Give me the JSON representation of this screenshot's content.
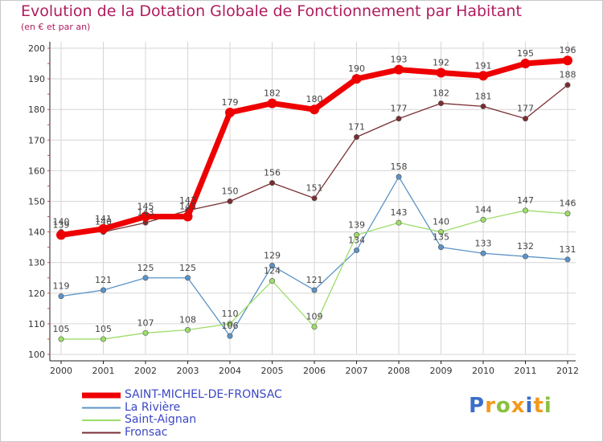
{
  "chart_data": {
    "type": "line",
    "title": "Evolution de la Dotation Globale de Fonctionnement par Habitant",
    "subtitle": "(en € et par an)",
    "xlabel": "",
    "ylabel": "",
    "ylim": [
      100,
      200
    ],
    "yticks": [
      100,
      110,
      120,
      130,
      140,
      150,
      160,
      170,
      180,
      190,
      200
    ],
    "grid": true,
    "legend_position": "bottom-left",
    "categories": [
      "2000",
      "2001",
      "2002",
      "2003",
      "2004",
      "2005",
      "2006",
      "2007",
      "2008",
      "2009",
      "2010",
      "2011",
      "2012"
    ],
    "series": [
      {
        "name": "La Rivière",
        "color": "#5b93c7",
        "values": [
          119,
          121,
          125,
          125,
          106,
          129,
          121,
          134,
          158,
          135,
          133,
          132,
          131
        ]
      },
      {
        "name": "Saint-Aignan",
        "color": "#9ddc6a",
        "values": [
          105,
          105,
          107,
          108,
          110,
          124,
          109,
          139,
          143,
          140,
          144,
          147,
          146
        ]
      },
      {
        "name": "Fronsac",
        "color": "#7a2e33",
        "values": [
          140,
          140,
          143,
          147,
          150,
          156,
          151,
          171,
          177,
          182,
          181,
          177,
          188
        ]
      },
      {
        "name": "SAINT-MICHEL-DE-FRONSAC",
        "color": "#ee0000",
        "values": [
          139,
          141,
          145,
          145,
          179,
          182,
          180,
          190,
          193,
          192,
          191,
          195,
          196
        ]
      }
    ]
  },
  "legend": {
    "items": [
      {
        "label": "SAINT-MICHEL-DE-FRONSAC",
        "color": "#ee0000",
        "icon": "thick-line"
      },
      {
        "label": "La Rivière",
        "color": "#5b93c7",
        "icon": "thin-line"
      },
      {
        "label": "Saint-Aignan",
        "color": "#9ddc6a",
        "icon": "thin-line"
      },
      {
        "label": "Fronsac",
        "color": "#7a2e33",
        "icon": "thin-line"
      }
    ]
  },
  "brand": {
    "logo_text": "Proxiti",
    "letter_colors": [
      "#3b6fc8",
      "#f29a1e",
      "#8ac13f",
      "#f29a1e",
      "#3b6fc8",
      "#f29a1e",
      "#8ac13f"
    ]
  }
}
